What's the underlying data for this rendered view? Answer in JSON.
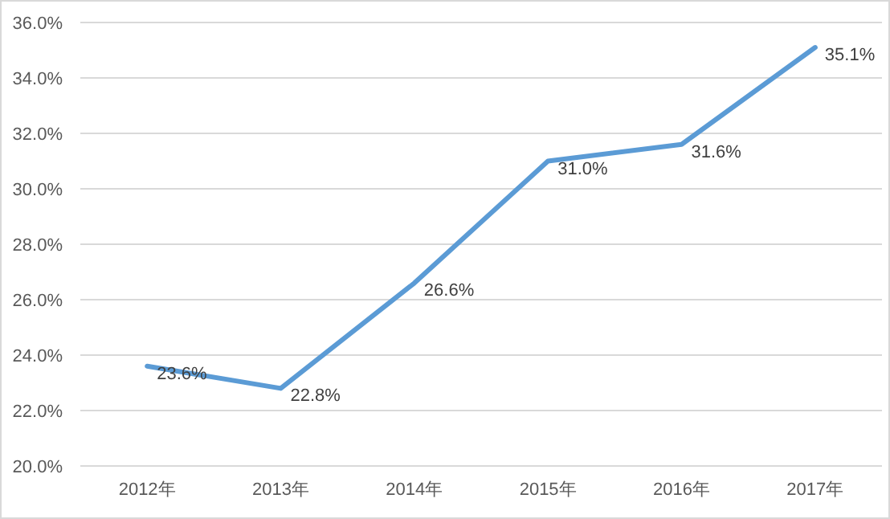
{
  "chart_data": {
    "type": "line",
    "categories": [
      "2012年",
      "2013年",
      "2014年",
      "2015年",
      "2016年",
      "2017年"
    ],
    "series": [
      {
        "color": "#5b9bd5",
        "values": [
          23.6,
          22.8,
          26.6,
          31.0,
          31.6,
          35.1
        ],
        "value_labels": [
          "23.6%",
          "22.8%",
          "26.6%",
          "31.0%",
          "31.6%",
          "35.1%"
        ]
      }
    ],
    "ylim": [
      20,
      36
    ],
    "yticks": [
      {
        "value": 20,
        "label": "20.0%"
      },
      {
        "value": 22,
        "label": "22.0%"
      },
      {
        "value": 24,
        "label": "24.0%"
      },
      {
        "value": 26,
        "label": "26.0%"
      },
      {
        "value": 28,
        "label": "28.0%"
      },
      {
        "value": 30,
        "label": "30.0%"
      },
      {
        "value": 32,
        "label": "32.0%"
      },
      {
        "value": 34,
        "label": "34.0%"
      },
      {
        "value": 36,
        "label": "36.0%"
      }
    ],
    "grid": "y",
    "marker": "none",
    "line_style": "solid"
  }
}
